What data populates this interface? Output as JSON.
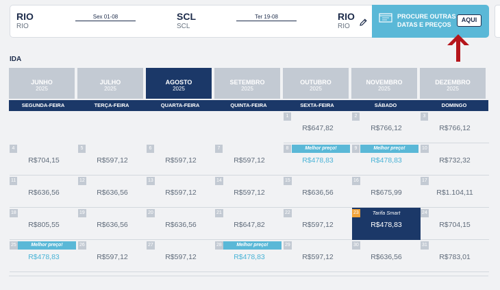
{
  "route": {
    "origin": {
      "code": "RIO",
      "city": "RIO"
    },
    "outbound_date": "Sex 01-08",
    "destination": {
      "code": "SCL",
      "city": "SCL"
    },
    "return_date": "Ter 19-08",
    "return_to": {
      "code": "RIO",
      "city": "RIO"
    },
    "edit_icon": "pencil-icon"
  },
  "promo": {
    "text": "PROCURE OUTRAS DATAS E PREÇOS",
    "button_label": "AQUI",
    "icon": "calendar-icon",
    "color": "#5ab8d7"
  },
  "annotation_arrow_color": "#b5151b",
  "section_label": "IDA",
  "months": [
    {
      "name": "JUNHO",
      "year": "2025",
      "active": false
    },
    {
      "name": "JULHO",
      "year": "2025",
      "active": false
    },
    {
      "name": "AGOSTO",
      "year": "2025",
      "active": true
    },
    {
      "name": "SETEMBRO",
      "year": "2025",
      "active": false
    },
    {
      "name": "OUTUBRO",
      "year": "2025",
      "active": false
    },
    {
      "name": "NOVEMBRO",
      "year": "2025",
      "active": false
    },
    {
      "name": "DEZEMBRO",
      "year": "2025",
      "active": false
    }
  ],
  "weekdays": [
    "SEGUNDA-FEIRA",
    "TERÇA-FEIRA",
    "QUARTA-FEIRA",
    "QUINTA-FEIRA",
    "SEXTA-FEIRA",
    "SÁBADO",
    "DOMINGO"
  ],
  "labels": {
    "best_price": "Melhor preço!",
    "smart_fare": "Tarifa Smart"
  },
  "calendar": [
    [
      null,
      null,
      null,
      null,
      {
        "day": "1",
        "price": "R$647,82"
      },
      {
        "day": "2",
        "price": "R$766,12"
      },
      {
        "day": "3",
        "price": "R$766,12"
      }
    ],
    [
      {
        "day": "4",
        "price": "R$704,15"
      },
      {
        "day": "5",
        "price": "R$597,12"
      },
      {
        "day": "6",
        "price": "R$597,12"
      },
      {
        "day": "7",
        "price": "R$597,12"
      },
      {
        "day": "8",
        "price": "R$478,83",
        "best": true
      },
      {
        "day": "9",
        "price": "R$478,83",
        "best": true
      },
      {
        "day": "10",
        "price": "R$732,32"
      }
    ],
    [
      {
        "day": "11",
        "price": "R$636,56"
      },
      {
        "day": "12",
        "price": "R$636,56"
      },
      {
        "day": "13",
        "price": "R$597,12"
      },
      {
        "day": "14",
        "price": "R$597,12"
      },
      {
        "day": "15",
        "price": "R$636,56"
      },
      {
        "day": "16",
        "price": "R$675,99"
      },
      {
        "day": "17",
        "price": "R$1.104,11"
      }
    ],
    [
      {
        "day": "18",
        "price": "R$805,55"
      },
      {
        "day": "19",
        "price": "R$636,56"
      },
      {
        "day": "20",
        "price": "R$636,56"
      },
      {
        "day": "21",
        "price": "R$647,82"
      },
      {
        "day": "22",
        "price": "R$597,12"
      },
      {
        "day": "23",
        "price": "R$478,83",
        "smart": true
      },
      {
        "day": "24",
        "price": "R$704,15"
      }
    ],
    [
      {
        "day": "25",
        "price": "R$478,83",
        "best": true
      },
      {
        "day": "26",
        "price": "R$597,12"
      },
      {
        "day": "27",
        "price": "R$597,12"
      },
      {
        "day": "28",
        "price": "R$478,83",
        "best": true
      },
      {
        "day": "29",
        "price": "R$597,12"
      },
      {
        "day": "30",
        "price": "R$636,56"
      },
      {
        "day": "31",
        "price": "R$783,01"
      }
    ]
  ]
}
